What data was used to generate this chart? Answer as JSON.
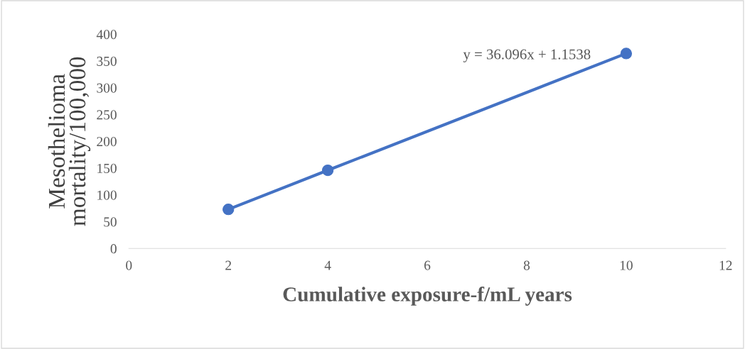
{
  "chart_data": {
    "type": "line",
    "xlabel": "Cumulative exposure-f/mL years",
    "ylabel": "Mesothelioma\nmortality/100,000",
    "x": [
      2,
      4,
      10
    ],
    "series": [
      {
        "color": "#4472c4",
        "values": [
          73,
          146,
          364
        ]
      }
    ],
    "marker": "circle",
    "line_style": "solid",
    "xlim": [
      0,
      12
    ],
    "xticks": [
      0,
      2,
      4,
      6,
      8,
      10,
      12
    ],
    "ylim": [
      0,
      400
    ],
    "yticks": [
      0,
      50,
      100,
      150,
      200,
      250,
      300,
      350,
      400
    ],
    "grid": false,
    "legend": false,
    "annotations": [
      "y = 36.096x + 1.1538"
    ]
  }
}
